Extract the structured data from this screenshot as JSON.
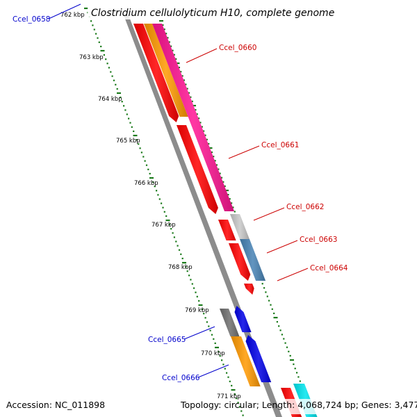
{
  "title": "Clostridium cellulolyticum H10, complete genome",
  "footer": {
    "accession": "Accession: NC_011898",
    "summary": "Topology: circular; Length: 4,068,724 bp; Genes: 3,477"
  },
  "kbp_ticks": [
    "762 kbp",
    "763 kbp",
    "764 kbp",
    "765 kbp",
    "766 kbp",
    "767 kbp",
    "768 kbp",
    "769 kbp",
    "770 kbp",
    "771 kbp"
  ],
  "gene_labels": [
    {
      "id": "Ccel_0658",
      "text": "Ccel_0658",
      "strand": "minus"
    },
    {
      "id": "Ccel_0660",
      "text": "Ccel_0660",
      "strand": "plus"
    },
    {
      "id": "Ccel_0661",
      "text": "Ccel_0661",
      "strand": "plus"
    },
    {
      "id": "Ccel_0662",
      "text": "Ccel_0662",
      "strand": "plus"
    },
    {
      "id": "Ccel_0663",
      "text": "Ccel_0663",
      "strand": "plus"
    },
    {
      "id": "Ccel_0664",
      "text": "Ccel_0664",
      "strand": "plus"
    },
    {
      "id": "Ccel_0665",
      "text": "Ccel_0665",
      "strand": "minus"
    },
    {
      "id": "Ccel_0666",
      "text": "Ccel_0666",
      "strand": "minus"
    }
  ],
  "colors": {
    "backbone": "#8c8c8c",
    "cds": "#ff0000",
    "plus_label": "#cc0000",
    "minus_label": "#0000cc",
    "tick": "#1a7a1a",
    "magenta": "#ff1493",
    "orange": "#ff9900",
    "silver": "#c8c8c8",
    "steelblue": "#4682b4",
    "darkgray": "#6e6e6e",
    "blue": "#0000e6",
    "cyan": "#00e5ee"
  }
}
